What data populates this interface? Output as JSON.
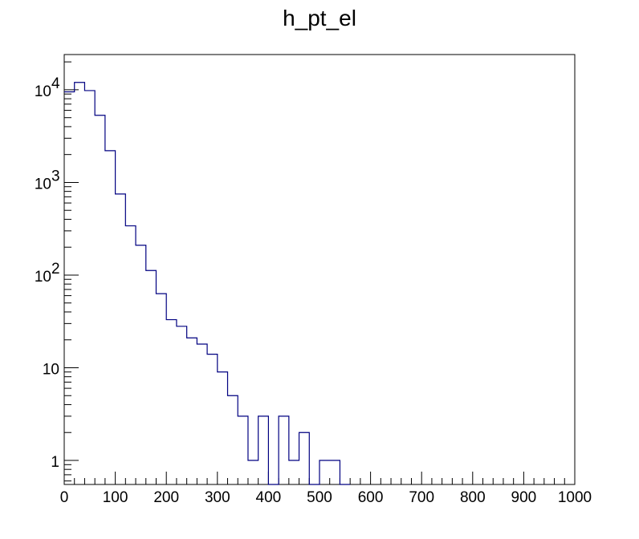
{
  "chart_data": {
    "type": "bar",
    "style": "step-histogram",
    "title": "h_pt_el",
    "xlabel": "",
    "ylabel": "",
    "xlim": [
      0,
      1000
    ],
    "ylim": [
      0.55,
      24000
    ],
    "yscale": "log",
    "grid": false,
    "legend": "none",
    "line_color": "#000080",
    "bin_width": 20,
    "x_ticks": [
      {
        "value": 0,
        "label": "0"
      },
      {
        "value": 100,
        "label": "100"
      },
      {
        "value": 200,
        "label": "200"
      },
      {
        "value": 300,
        "label": "300"
      },
      {
        "value": 400,
        "label": "400"
      },
      {
        "value": 500,
        "label": "500"
      },
      {
        "value": 600,
        "label": "600"
      },
      {
        "value": 700,
        "label": "700"
      },
      {
        "value": 800,
        "label": "800"
      },
      {
        "value": 900,
        "label": "900"
      },
      {
        "value": 1000,
        "label": "1000"
      }
    ],
    "y_ticks": [
      {
        "value": 1,
        "base": "1",
        "exp": ""
      },
      {
        "value": 10,
        "base": "10",
        "exp": ""
      },
      {
        "value": 100,
        "base": "10",
        "exp": "2"
      },
      {
        "value": 1000,
        "base": "10",
        "exp": "3"
      },
      {
        "value": 10000,
        "base": "10",
        "exp": "4"
      }
    ],
    "bins": [
      {
        "x": 0,
        "value": 9500
      },
      {
        "x": 20,
        "value": 12000
      },
      {
        "x": 40,
        "value": 9800
      },
      {
        "x": 60,
        "value": 5300
      },
      {
        "x": 80,
        "value": 2200
      },
      {
        "x": 100,
        "value": 750
      },
      {
        "x": 120,
        "value": 340
      },
      {
        "x": 140,
        "value": 210
      },
      {
        "x": 160,
        "value": 112
      },
      {
        "x": 180,
        "value": 63
      },
      {
        "x": 200,
        "value": 33
      },
      {
        "x": 220,
        "value": 28
      },
      {
        "x": 240,
        "value": 21
      },
      {
        "x": 260,
        "value": 18
      },
      {
        "x": 280,
        "value": 14
      },
      {
        "x": 300,
        "value": 9
      },
      {
        "x": 320,
        "value": 5
      },
      {
        "x": 340,
        "value": 3
      },
      {
        "x": 360,
        "value": 1
      },
      {
        "x": 380,
        "value": 3
      },
      {
        "x": 400,
        "value": 0
      },
      {
        "x": 420,
        "value": 3
      },
      {
        "x": 440,
        "value": 1
      },
      {
        "x": 460,
        "value": 2
      },
      {
        "x": 480,
        "value": 0
      },
      {
        "x": 500,
        "value": 1
      },
      {
        "x": 520,
        "value": 1
      },
      {
        "x": 540,
        "value": 0
      }
    ]
  }
}
